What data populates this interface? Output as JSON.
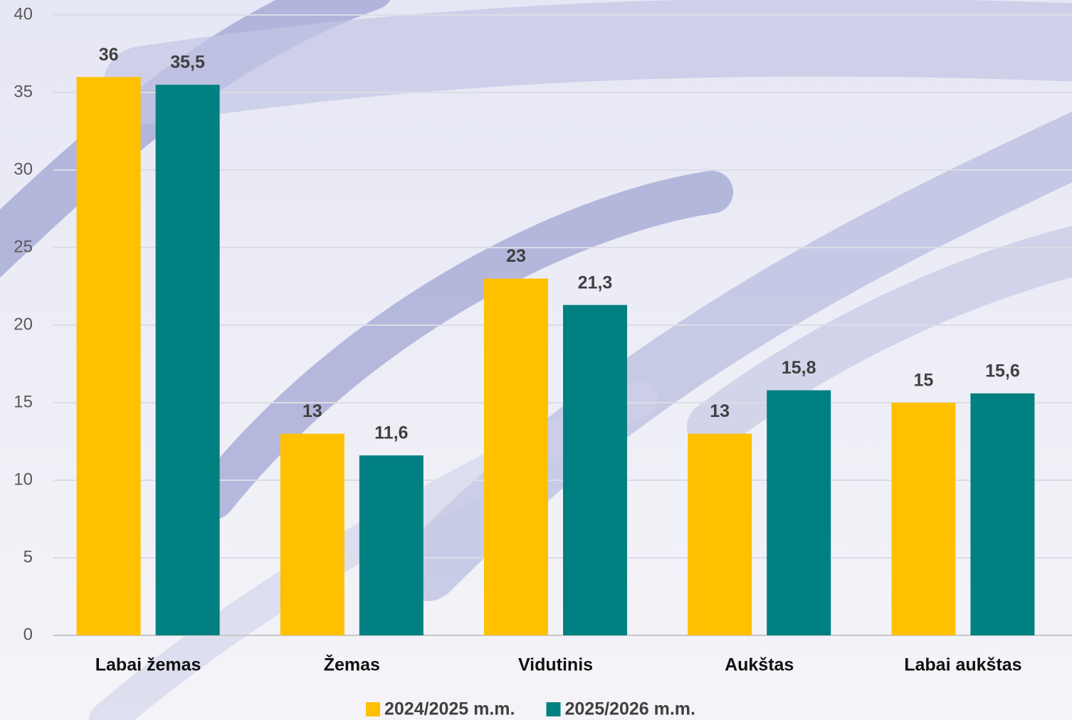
{
  "chart_data": {
    "type": "bar",
    "categories": [
      "Labai žemas",
      "Žemas",
      "Vidutinis",
      "Aukštas",
      "Labai aukštas"
    ],
    "series": [
      {
        "name": "2024/2025 m.m.",
        "color": "#ffc000",
        "values": [
          36,
          13,
          23,
          13,
          15
        ]
      },
      {
        "name": "2025/2026 m.m.",
        "color": "#008080",
        "values": [
          35.5,
          11.6,
          21.3,
          15.8,
          15.6
        ],
        "value_labels": [
          "35,5",
          "11,6",
          "21,3",
          "15,8",
          "15,6"
        ]
      }
    ],
    "ylim": [
      0,
      40
    ],
    "yticks": [
      0,
      5,
      10,
      15,
      20,
      25,
      30,
      35,
      40
    ],
    "grid": true,
    "legend": "bottom"
  }
}
